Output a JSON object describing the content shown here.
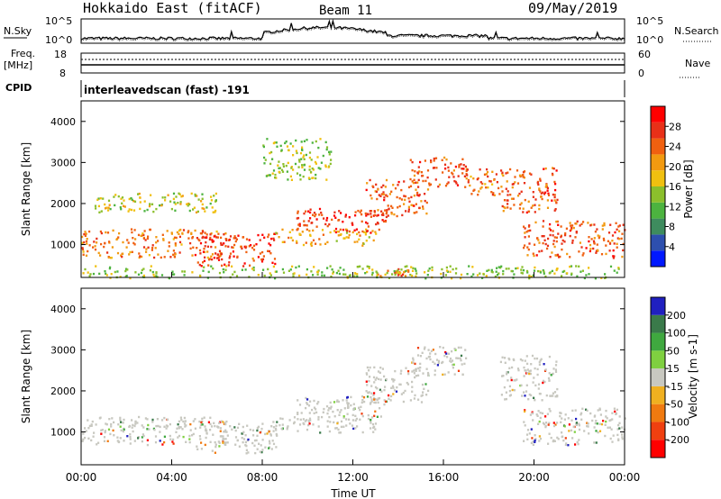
{
  "header": {
    "station": "Hokkaido East (fitACF)",
    "beam": "Beam 11",
    "date": "09/May/2019"
  },
  "noise_panel": {
    "left_label": "N.Sky",
    "right_label": "N.Search",
    "left_ticks": [
      "10^5",
      "10^0"
    ],
    "right_ticks": [
      "10^5",
      "10^0"
    ]
  },
  "freq_panel": {
    "left_label_1": "Freq.",
    "left_label_2": "[MHz]",
    "right_label": "Nave",
    "left_ticks": [
      "18",
      "8"
    ],
    "right_ticks": [
      "60",
      "0"
    ]
  },
  "cpid": {
    "label": "CPID",
    "value": "interleavedscan (fast) -191"
  },
  "chart_data": [
    {
      "type": "heatmap",
      "panel": "power",
      "ylabel": "Slant Range [km]",
      "xlabel": "Time UT",
      "x_ticks": [
        "00:00",
        "04:00",
        "08:00",
        "12:00",
        "16:00",
        "20:00",
        "00:00"
      ],
      "x_range_hours": [
        0,
        24
      ],
      "y_ticks": [
        1000,
        2000,
        3000,
        4000
      ],
      "ylim": [
        200,
        4500
      ],
      "colorbar_label": "Power [dB]",
      "colorbar_ticks": [
        4,
        8,
        12,
        16,
        20,
        24,
        28
      ],
      "colorbar_range": [
        0,
        32
      ],
      "colors": [
        "#0018ff",
        "#2d4fae",
        "#3e8c5e",
        "#4cb33f",
        "#8bbf2c",
        "#f0c010",
        "#f29a10",
        "#f06010",
        "#e83018",
        "#ff0000"
      ],
      "regions": [
        {
          "t0": 0.0,
          "t1": 6.5,
          "r0": 700,
          "r1": 1400,
          "level": 24
        },
        {
          "t0": 5.0,
          "t1": 8.6,
          "r0": 500,
          "r1": 1300,
          "level": 28
        },
        {
          "t0": 8.5,
          "t1": 13.0,
          "r0": 1000,
          "r1": 1400,
          "level": 20
        },
        {
          "t0": 9.5,
          "t1": 13.5,
          "r0": 1300,
          "r1": 1900,
          "level": 28
        },
        {
          "t0": 12.5,
          "t1": 15.3,
          "r0": 1700,
          "r1": 2600,
          "level": 26
        },
        {
          "t0": 14.5,
          "t1": 17.0,
          "r0": 2400,
          "r1": 3150,
          "level": 26
        },
        {
          "t0": 17.0,
          "t1": 18.6,
          "r0": 2200,
          "r1": 2900,
          "level": 24
        },
        {
          "t0": 18.5,
          "t1": 21.0,
          "r0": 1800,
          "r1": 2900,
          "level": 26
        },
        {
          "t0": 19.5,
          "t1": 24.0,
          "r0": 700,
          "r1": 1600,
          "level": 26
        },
        {
          "t0": 0.5,
          "t1": 6.0,
          "r0": 1800,
          "r1": 2300,
          "level": 16
        },
        {
          "t0": 8.0,
          "t1": 11.0,
          "r0": 2600,
          "r1": 3600,
          "level": 14
        },
        {
          "t0": 13.0,
          "t1": 14.5,
          "r0": 250,
          "r1": 450,
          "level": 24
        },
        {
          "t0": 0.0,
          "t1": 24.0,
          "r0": 200,
          "r1": 500,
          "level": 14
        }
      ]
    },
    {
      "type": "heatmap",
      "panel": "velocity",
      "ylabel": "Slant Range [km]",
      "xlabel": "Time UT",
      "x_ticks": [
        "00:00",
        "04:00",
        "08:00",
        "12:00",
        "16:00",
        "20:00",
        "00:00"
      ],
      "x_range_hours": [
        0,
        24
      ],
      "y_ticks": [
        1000,
        2000,
        3000,
        4000
      ],
      "ylim": [
        200,
        4500
      ],
      "colorbar_label": "Velocity [m s-1]",
      "colorbar_ticks": [
        200,
        100,
        50,
        15,
        -15,
        -50,
        -100,
        -200
      ],
      "colors": [
        "#2020c0",
        "#3a7a4a",
        "#3fa83f",
        "#7fd040",
        "#c8c8c0",
        "#f0b020",
        "#f07a10",
        "#f04010",
        "#ff0000"
      ],
      "regions": [
        {
          "t0": 0.0,
          "t1": 6.5,
          "r0": 700,
          "r1": 1400,
          "level": 0
        },
        {
          "t0": 5.0,
          "t1": 8.6,
          "r0": 500,
          "r1": 1300,
          "level": 0
        },
        {
          "t0": 8.5,
          "t1": 13.0,
          "r0": 1000,
          "r1": 1400,
          "level": 0
        },
        {
          "t0": 9.5,
          "t1": 13.5,
          "r0": 1300,
          "r1": 1900,
          "level": 0
        },
        {
          "t0": 12.5,
          "t1": 15.3,
          "r0": 1700,
          "r1": 2600,
          "level": 0
        },
        {
          "t0": 14.5,
          "t1": 17.0,
          "r0": 2400,
          "r1": 3150,
          "level": 0
        },
        {
          "t0": 18.5,
          "t1": 21.0,
          "r0": 1800,
          "r1": 2900,
          "level": 0
        },
        {
          "t0": 19.5,
          "t1": 24.0,
          "r0": 700,
          "r1": 1600,
          "level": 0
        }
      ]
    }
  ],
  "colors": {
    "axis": "#000000",
    "ground_scatter": "#c8c8c0"
  }
}
